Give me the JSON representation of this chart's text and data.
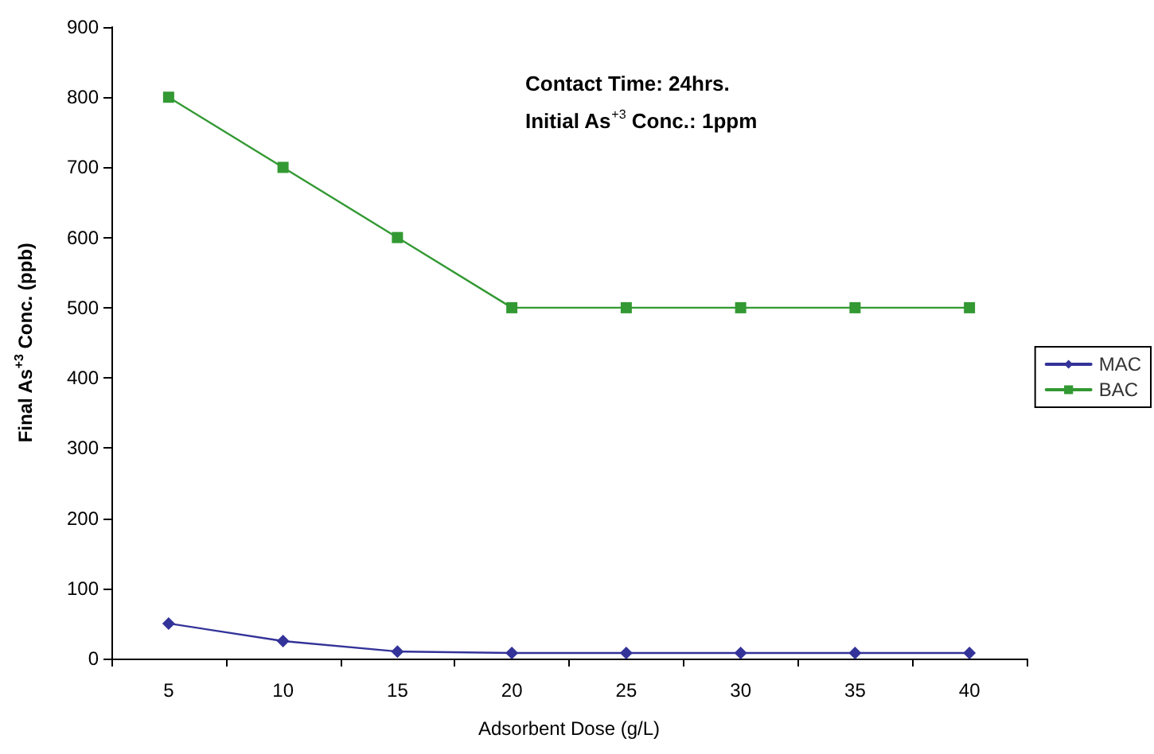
{
  "chart_data": {
    "type": "line",
    "xlabel": "Adsorbent Dose (g/L)",
    "ylabel": "Final As$^{+3}$ Conc. (ppb)",
    "annotations": [
      "Contact Time: 24hrs.",
      "Initial As$^{+3}$ Conc.: 1ppm"
    ],
    "categories": [
      "5",
      "10",
      "15",
      "20",
      "25",
      "30",
      "35",
      "40"
    ],
    "series": [
      {
        "name": "MAC",
        "color": "#333399",
        "marker": "diamond",
        "values": [
          50,
          25,
          10,
          8,
          8,
          8,
          8,
          8
        ]
      },
      {
        "name": "BAC",
        "color": "#339933",
        "marker": "square",
        "values": [
          800,
          700,
          600,
          500,
          500,
          500,
          500,
          500
        ]
      }
    ],
    "ylim": [
      0,
      900
    ],
    "yticks": [
      0,
      100,
      200,
      300,
      400,
      500,
      600,
      700,
      800,
      900
    ],
    "grid": false,
    "legend": "right",
    "line_style": "solid"
  }
}
